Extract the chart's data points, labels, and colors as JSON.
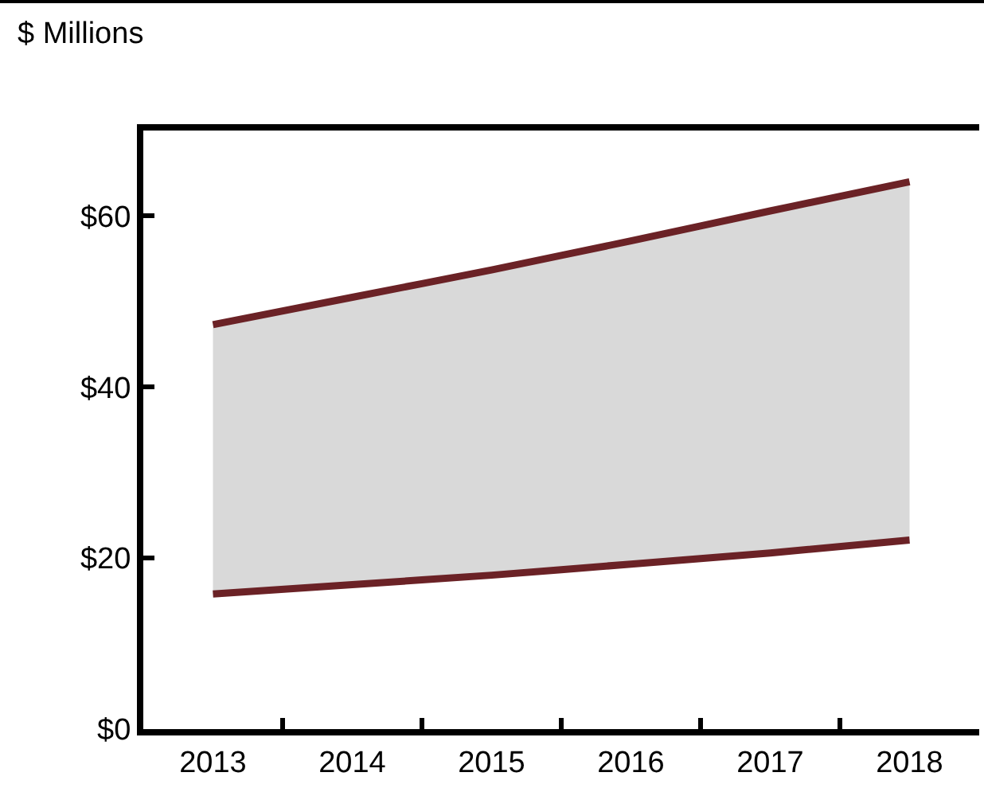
{
  "chart_data": {
    "type": "line",
    "ylabel": "$ Millions",
    "categories": [
      "2013",
      "2014",
      "2015",
      "2016",
      "2017",
      "2018"
    ],
    "series": [
      {
        "color": "#6b2226",
        "values": [
          15.8,
          16.9,
          18.0,
          19.3,
          20.6,
          22.1
        ]
      },
      {
        "color": "#6b2226",
        "values": [
          47.3,
          50.5,
          53.7,
          57.1,
          60.6,
          64.0
        ],
        "lower": [
          15.8,
          16.9,
          18.0,
          19.3,
          20.6,
          22.1
        ],
        "upper": [
          47.3,
          50.5,
          53.7,
          57.1,
          60.6,
          64.0
        ]
      }
    ],
    "ylim": [
      0,
      70
    ],
    "yticks": [
      {
        "value": 0,
        "label": "$0"
      },
      {
        "value": 20,
        "label": "$20"
      },
      {
        "value": 40,
        "label": "$40"
      },
      {
        "value": 60,
        "label": "$60"
      }
    ],
    "grid": false,
    "marker": "none",
    "line_style": "solid"
  }
}
